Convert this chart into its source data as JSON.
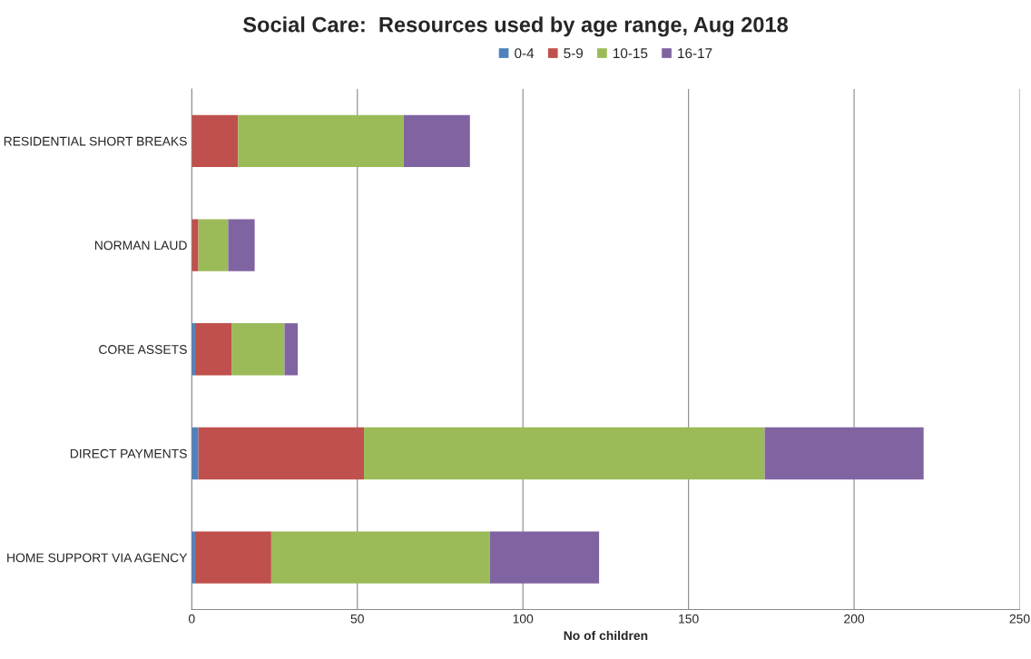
{
  "chart_data": {
    "type": "bar",
    "title": "Social Care:  Resources used by age range, Aug 2018",
    "xlabel": "No of children",
    "orientation": "horizontal",
    "stacked": true,
    "categories": [
      "RESIDENTIAL SHORT BREAKS",
      "NORMAN LAUD",
      "CORE ASSETS",
      "DIRECT PAYMENTS",
      "HOME SUPPORT VIA AGENCY"
    ],
    "series": [
      {
        "name": "0-4",
        "color": "#4f81bd",
        "values": [
          0,
          0,
          1,
          2,
          1
        ]
      },
      {
        "name": "5-9",
        "color": "#c0504d",
        "values": [
          14,
          2,
          11,
          50,
          23
        ]
      },
      {
        "name": "10-15",
        "color": "#9bbb59",
        "values": [
          50,
          9,
          16,
          121,
          66
        ]
      },
      {
        "name": "16-17",
        "color": "#8064a2",
        "values": [
          20,
          8,
          4,
          48,
          33
        ]
      }
    ],
    "xlim": [
      0,
      250
    ],
    "xticks": [
      0,
      50,
      100,
      150,
      200,
      250
    ],
    "grid": "x",
    "legend": "top"
  }
}
